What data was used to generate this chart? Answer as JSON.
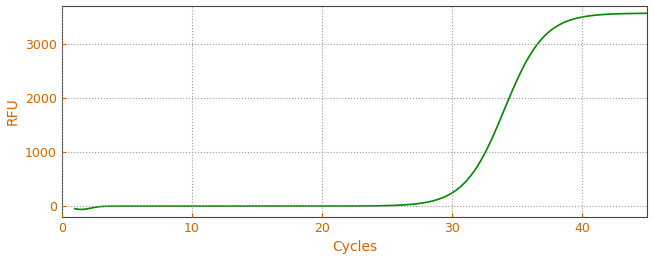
{
  "title": "",
  "xlabel": "Cycles",
  "ylabel": "RFU",
  "line_color": "#008800",
  "line_width": 1.2,
  "background_color": "#ffffff",
  "grid_color": "#999999",
  "grid_style": ":",
  "xlim": [
    0,
    45
  ],
  "ylim": [
    -200,
    3700
  ],
  "xticks": [
    0,
    10,
    20,
    30,
    40
  ],
  "yticks": [
    0,
    1000,
    2000,
    3000
  ],
  "sigmoid_L": 3560,
  "sigmoid_k": 0.65,
  "sigmoid_x0": 34.0,
  "x_start": 1,
  "x_end": 45,
  "tick_color": "#cc6600",
  "label_color": "#cc6600",
  "spine_color": "#444444",
  "tick_label_size": 9,
  "axis_label_size": 10
}
